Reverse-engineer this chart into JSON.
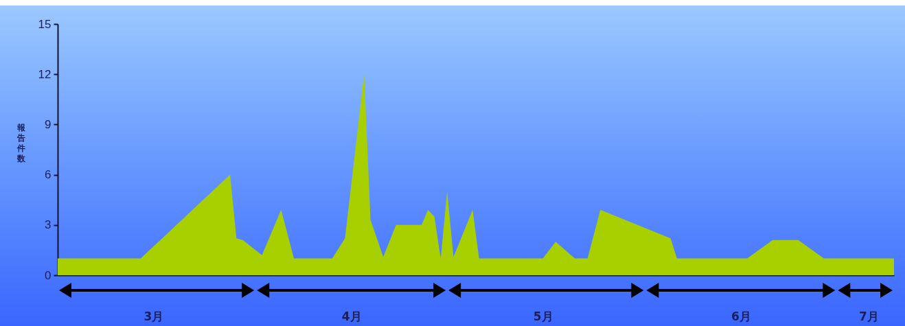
{
  "chart_data": {
    "type": "area",
    "ylabel": "報告件数",
    "x": [
      "--03-01",
      "--03-14",
      "--03-28",
      "--03-29",
      "--03-30",
      "--04-02",
      "--04-05",
      "--04-07",
      "--04-13",
      "--04-15",
      "--04-18",
      "--04-19",
      "--04-21",
      "--04-23",
      "--04-27",
      "--04-28",
      "--04-29",
      "--04-30",
      "--05-01",
      "--05-02",
      "--05-05",
      "--05-06",
      "--05-16",
      "--05-18",
      "--05-21",
      "--05-23",
      "--05-25",
      "--06-05",
      "--06-06",
      "--06-17",
      "--06-21",
      "--06-25",
      "--06-29",
      "--07-10"
    ],
    "series": [
      {
        "color": "#a8d000",
        "values": [
          1,
          1,
          6,
          2.2,
          2.1,
          1.2,
          3.9,
          1,
          1,
          2.2,
          12,
          3.3,
          1.1,
          3,
          3,
          3.9,
          3.5,
          1,
          5,
          1.1,
          3.9,
          1,
          1,
          2,
          1,
          1,
          3.9,
          2.2,
          1,
          1,
          2.1,
          2.1,
          1,
          1
        ]
      }
    ],
    "xticks": [
      {
        "value": "--03-16",
        "label": "3月"
      },
      {
        "value": "--04-16",
        "label": "4月"
      },
      {
        "value": "--05-16",
        "label": "5月"
      },
      {
        "value": "--06-16",
        "label": "6月"
      },
      {
        "value": "--07-06",
        "label": "7月"
      }
    ],
    "xlim": [
      "--03-01",
      "--07-10"
    ],
    "ylim": [
      0,
      15
    ],
    "yticks": [
      0,
      3,
      6,
      9,
      12,
      15
    ],
    "grid": false
  }
}
